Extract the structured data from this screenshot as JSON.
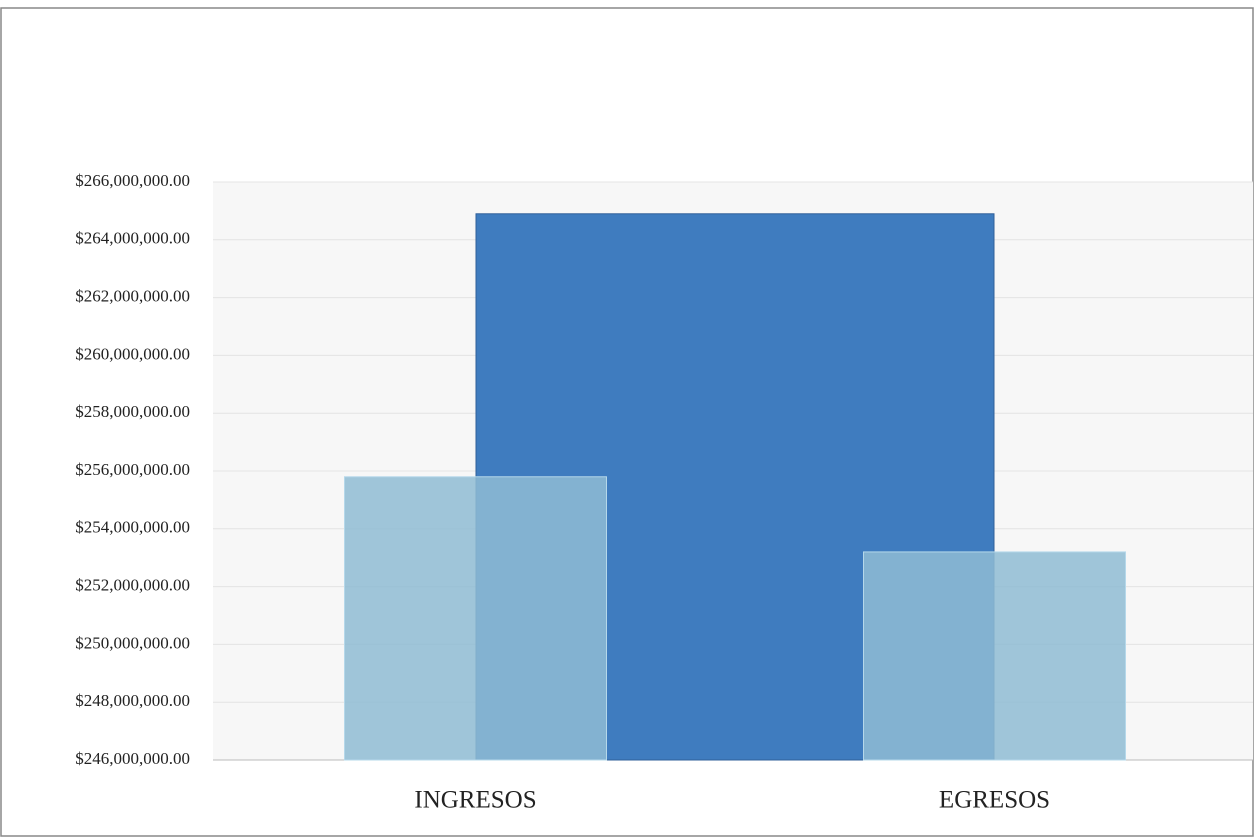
{
  "chart_data": {
    "type": "bar",
    "categories": [
      "INGRESOS",
      null,
      "EGRESOS"
    ],
    "values": [
      255800000,
      264900000,
      253200000
    ],
    "colors": [
      "#8fbcd4",
      "#3f7cbf",
      "#8fbcd4"
    ],
    "ylim": [
      246000000,
      266000000
    ],
    "yticks": [
      {
        "value": 246000000,
        "label": "$246,000,000.00"
      },
      {
        "value": 248000000,
        "label": "$248,000,000.00"
      },
      {
        "value": 250000000,
        "label": "$250,000,000.00"
      },
      {
        "value": 252000000,
        "label": "$252,000,000.00"
      },
      {
        "value": 254000000,
        "label": "$254,000,000.00"
      },
      {
        "value": 256000000,
        "label": "$256,000,000.00"
      },
      {
        "value": 258000000,
        "label": "$258,000,000.00"
      },
      {
        "value": 260000000,
        "label": "$260,000,000.00"
      },
      {
        "value": 262000000,
        "label": "$262,000,000.00"
      },
      {
        "value": 264000000,
        "label": "$264,000,000.00"
      },
      {
        "value": 266000000,
        "label": "$266,000,000.00"
      }
    ],
    "grid": true
  }
}
